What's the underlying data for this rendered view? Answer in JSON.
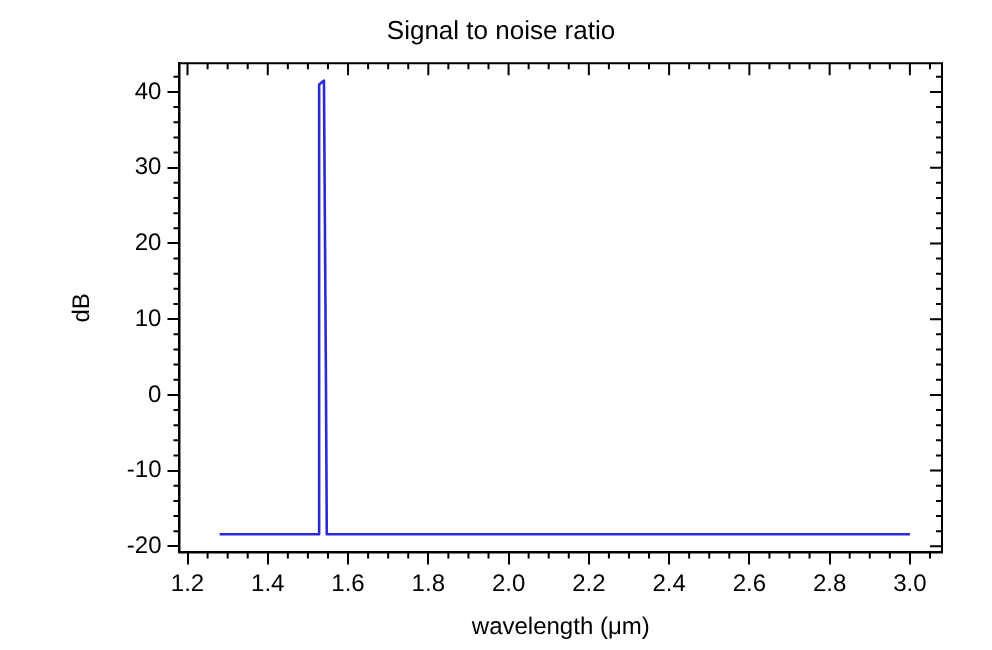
{
  "chart_data": {
    "type": "line",
    "title": "Signal to noise ratio",
    "xlabel": "wavelength (μm)",
    "ylabel": "dB",
    "series": [
      {
        "color": "#2b2bd6",
        "x": [
          1.28,
          1.526,
          1.528,
          1.54,
          1.545,
          1.547,
          3.0
        ],
        "values": [
          -18.4,
          -18.4,
          41,
          41.5,
          1.3,
          -18.4,
          -18.4
        ]
      }
    ],
    "xlim": [
      1.18,
      3.08
    ],
    "xticks": [
      1.2,
      1.4,
      1.6,
      1.8,
      {
        "value": 2,
        "label": "2.0"
      },
      2.2,
      2.4,
      2.6,
      2.8,
      {
        "value": 3,
        "label": "3.0"
      }
    ],
    "ylim": [
      -20.8,
      43.8
    ],
    "yticks": [
      -20,
      -10,
      0,
      10,
      20,
      30,
      40
    ],
    "grid": false,
    "legend": false,
    "marker": "none",
    "line_style": "solid"
  }
}
